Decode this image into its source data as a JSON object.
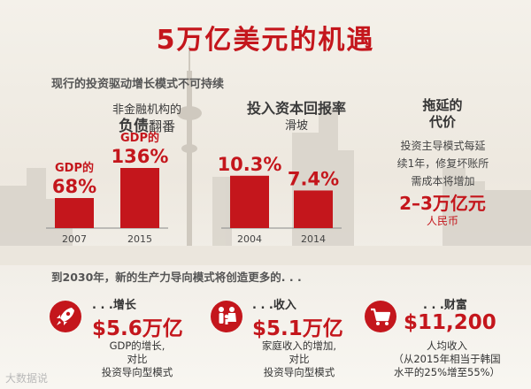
{
  "title": "5万亿美元的机遇",
  "section1_heading": "现行的投资驱动增长模式不可持续",
  "debt_panel": {
    "line1": "非金融机构的",
    "line2_bold": "负债",
    "line2_rest": "翻番"
  },
  "roi_panel": {
    "line1": "投入资本回报率",
    "line2": "滑坡"
  },
  "delay_panel": {
    "title_line1": "拖延的",
    "title_line2": "代价",
    "text_lines": [
      "投资主导模式每延",
      "续1年，修复坏账所",
      "需成本将增加"
    ],
    "value": "2–3万亿元",
    "unit": "人民币"
  },
  "chart_data": [
    {
      "type": "bar",
      "categories": [
        "2007",
        "2015"
      ],
      "values": [
        68,
        136
      ],
      "value_labels": [
        "68%",
        "136%"
      ],
      "value_prefixes": [
        "GDP的",
        "GDP的"
      ],
      "unit": "%"
    },
    {
      "type": "bar",
      "categories": [
        "2004",
        "2014"
      ],
      "values": [
        10.3,
        7.4
      ],
      "value_labels": [
        "10.3%",
        "7.4%"
      ],
      "unit": "%"
    }
  ],
  "section2_heading": "到2030年，新的生产力导向模式将创造更多的. . .",
  "kpis": [
    {
      "icon": "rocket-icon",
      "label": ". . .增长",
      "value_num": "$5.6",
      "value_unit": "万亿",
      "note_lines": [
        "GDP的增长,",
        "对比",
        "投资导向型模式"
      ]
    },
    {
      "icon": "family-icon",
      "label": ". . .收入",
      "value_num": "$5.1",
      "value_unit": "万亿",
      "note_lines": [
        "家庭收入的增加,",
        "对比",
        "投资导向型模式"
      ]
    },
    {
      "icon": "shopping-cart-icon",
      "label": ". . .财富",
      "value_num": "$11,200",
      "value_unit": "",
      "note_lines": [
        "人均收入",
        "（从2015年相当于韩国",
        "水平的25%增至55%）"
      ]
    }
  ],
  "watermark": "大数据说",
  "colors": {
    "accent": "#c4161c",
    "bar": "#c4161c",
    "text": "#3a3a3a"
  }
}
